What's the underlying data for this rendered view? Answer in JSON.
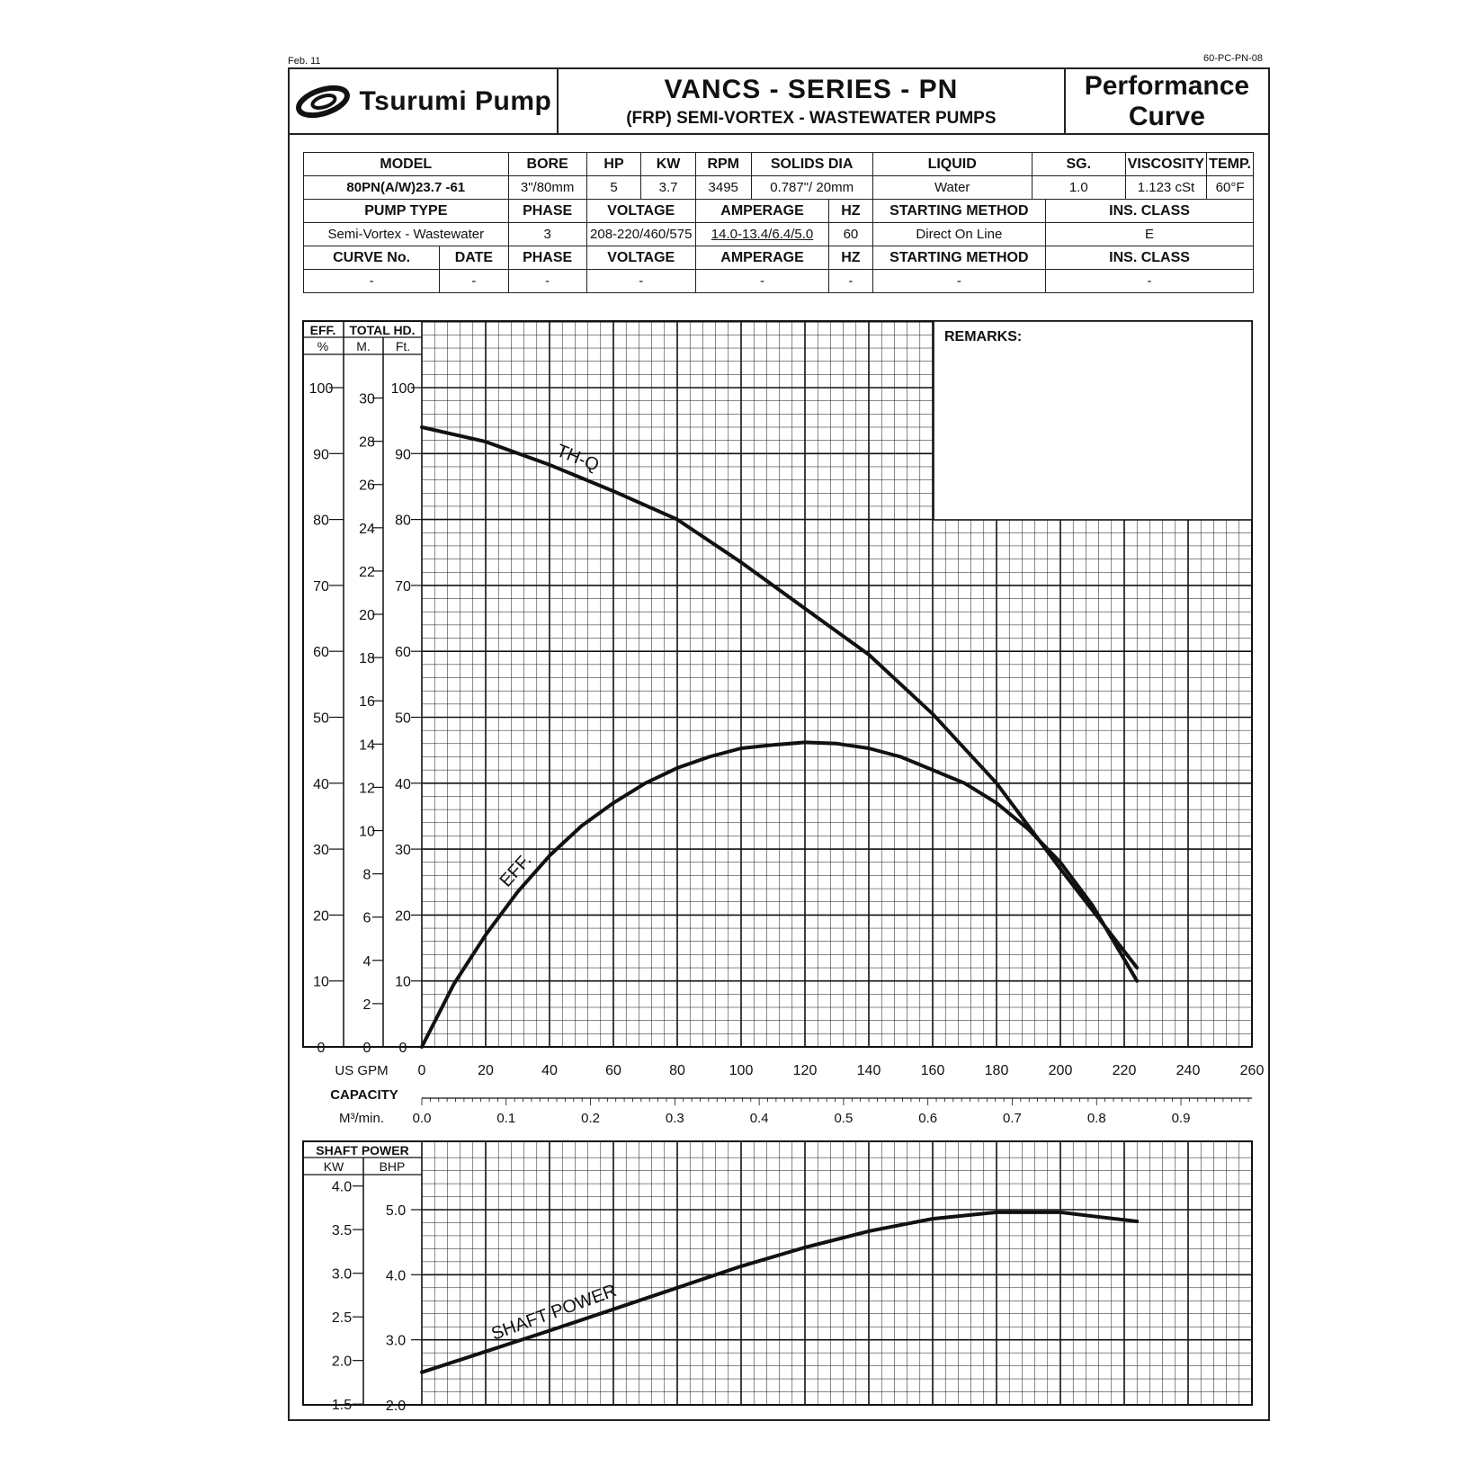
{
  "corners": {
    "date": "Feb. 11",
    "doc": "60-PC-PN-08"
  },
  "header": {
    "brand": "Tsurumi Pump",
    "title": "VANCS - SERIES - PN",
    "subtitle": "(FRP) SEMI-VORTEX - WASTEWATER PUMPS",
    "doc_type_1": "Performance",
    "doc_type_2": "Curve"
  },
  "spec": {
    "row1_headers": [
      "MODEL",
      "BORE",
      "HP",
      "KW",
      "RPM",
      "SOLIDS DIA",
      "LIQUID",
      "SG.",
      "VISCOSITY",
      "TEMP."
    ],
    "row1_values": [
      "80PN(A/W)23.7 -61",
      "3\"/80mm",
      "5",
      "3.7",
      "3495",
      "0.787\"/ 20mm",
      "Water",
      "1.0",
      "1.123 cSt",
      "60°F"
    ],
    "row2_headers": [
      "PUMP TYPE",
      "PHASE",
      "VOLTAGE",
      "AMPERAGE",
      "HZ",
      "STARTING METHOD",
      "INS. CLASS"
    ],
    "row2_values": [
      "Semi-Vortex - Wastewater",
      "3",
      "208-220/460/575",
      "14.0-13.4/6.4/5.0",
      "60",
      "Direct On Line",
      "E"
    ],
    "row3_headers": [
      "CURVE No.",
      "DATE",
      "PHASE",
      "VOLTAGE",
      "AMPERAGE",
      "HZ",
      "STARTING METHOD",
      "INS. CLASS"
    ],
    "row3_values": [
      "-",
      "-",
      "-",
      "-",
      "-",
      "-",
      "-",
      "-"
    ]
  },
  "chart_data": [
    {
      "type": "line",
      "xlabel": "CAPACITY",
      "x_unit_label": "US GPM",
      "x2_unit_label": "M³/min.",
      "xlim": [
        0,
        260
      ],
      "x_ticks": [
        0,
        20,
        40,
        60,
        80,
        100,
        120,
        140,
        160,
        180,
        200,
        220,
        240,
        260
      ],
      "x2_ticks": [
        "0.0",
        "0.1",
        "0.2",
        "0.3",
        "0.4",
        "0.5",
        "0.6",
        "0.7",
        "0.8",
        "0.9"
      ],
      "y_axes": {
        "eff_label": "EFF.",
        "eff_unit": "%",
        "head_label": "TOTAL HD.",
        "head_m_unit": "M.",
        "head_ft_unit": "Ft.",
        "eff_ticks": [
          0,
          10,
          20,
          30,
          40,
          50,
          60,
          70,
          80,
          90,
          100
        ],
        "head_m_ticks": [
          0,
          2,
          4,
          6,
          8,
          10,
          12,
          14,
          16,
          18,
          20,
          22,
          24,
          26,
          28,
          30
        ],
        "head_ft_ticks": [
          0,
          10,
          20,
          30,
          40,
          50,
          60,
          70,
          80,
          90,
          100
        ]
      },
      "remarks_label": "REMARKS:",
      "series": [
        {
          "name": "TH-Q",
          "unit": "ft",
          "x": [
            0,
            20,
            40,
            60,
            80,
            100,
            120,
            140,
            160,
            180,
            200,
            224
          ],
          "y": [
            94,
            91.8,
            88.3,
            84.3,
            80,
            73.5,
            66.5,
            59.5,
            50.5,
            40,
            27,
            12
          ]
        },
        {
          "name": "EFF.",
          "unit": "%",
          "x": [
            0,
            10,
            20,
            30,
            40,
            50,
            60,
            70,
            80,
            90,
            100,
            110,
            120,
            130,
            140,
            150,
            160,
            170,
            180,
            190,
            200,
            210,
            224
          ],
          "y": [
            0,
            9.5,
            17,
            23.5,
            29,
            33.5,
            37,
            40,
            42.3,
            44,
            45.3,
            45.8,
            46.2,
            46,
            45.3,
            44,
            42,
            40,
            37,
            33,
            28,
            21.5,
            10
          ]
        }
      ]
    },
    {
      "type": "line",
      "title": "SHAFT POWER",
      "xlim": [
        0,
        260
      ],
      "y_units": [
        "KW",
        "BHP"
      ],
      "kw_ticks": [
        "1.5",
        "2.0",
        "2.5",
        "3.0",
        "3.5",
        "4.0"
      ],
      "bhp_ticks": [
        "2.0",
        "3.0",
        "4.0",
        "5.0"
      ],
      "series": [
        {
          "name": "SHAFT POWER",
          "unit": "BHP",
          "x": [
            0,
            20,
            40,
            60,
            80,
            100,
            120,
            140,
            160,
            180,
            200,
            210,
            224
          ],
          "y": [
            2.5,
            2.82,
            3.14,
            3.47,
            3.8,
            4.13,
            4.42,
            4.67,
            4.86,
            4.96,
            4.96,
            4.9,
            4.82
          ]
        }
      ]
    }
  ]
}
